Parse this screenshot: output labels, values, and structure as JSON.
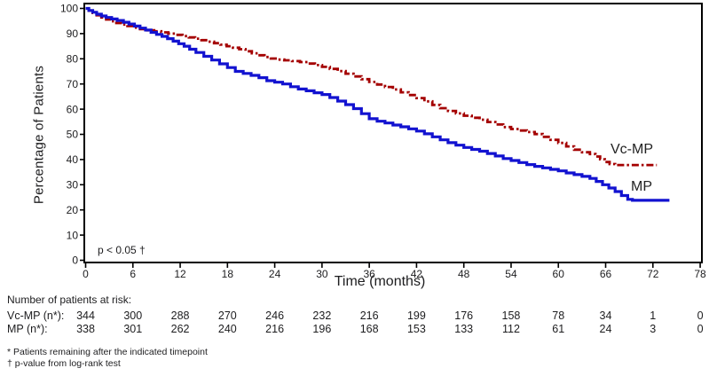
{
  "footnotes": [
    "* Patients remaining after the indicated timepoint",
    "† p-value from log-rank test"
  ],
  "chart_data": {
    "type": "line",
    "subtype": "kaplan-meier-step",
    "title": "",
    "xlabel": "Time (months)",
    "ylabel": "Percentage of Patients",
    "xlim": [
      0,
      78
    ],
    "ylim": [
      0,
      100
    ],
    "x_ticks": [
      0,
      6,
      12,
      18,
      24,
      30,
      36,
      42,
      48,
      54,
      60,
      66,
      72,
      78
    ],
    "y_ticks": [
      0,
      10,
      20,
      30,
      40,
      50,
      60,
      70,
      80,
      90,
      100
    ],
    "grid": false,
    "legend_position": "end-of-curve-labels",
    "annotation": "p < 0.05 †",
    "frame_color": "#000000",
    "series": [
      {
        "name": "Vc-MP",
        "color": "#A40000",
        "style": "dashed",
        "points": [
          [
            0,
            100
          ],
          [
            0.4,
            99.1
          ],
          [
            0.9,
            98.2
          ],
          [
            1.4,
            97.3
          ],
          [
            2,
            96.4
          ],
          [
            2.6,
            95.6
          ],
          [
            3.2,
            94.9
          ],
          [
            3.9,
            94.2
          ],
          [
            4.6,
            93.6
          ],
          [
            5.3,
            93
          ],
          [
            6.1,
            92.4
          ],
          [
            6.9,
            91.8
          ],
          [
            7.8,
            91.3
          ],
          [
            8.7,
            90.9
          ],
          [
            9.6,
            90.5
          ],
          [
            10.5,
            90
          ],
          [
            11.4,
            89.5
          ],
          [
            12.3,
            89
          ],
          [
            13.1,
            88.5
          ],
          [
            13.9,
            88
          ],
          [
            14.7,
            87.4
          ],
          [
            15.5,
            86.8
          ],
          [
            16.3,
            86.2
          ],
          [
            17.1,
            85.6
          ],
          [
            17.9,
            85
          ],
          [
            18.7,
            84.4
          ],
          [
            19.5,
            83.8
          ],
          [
            20.3,
            83
          ],
          [
            21.1,
            82.2
          ],
          [
            21.9,
            81.4
          ],
          [
            22.7,
            80.7
          ],
          [
            23.5,
            80.1
          ],
          [
            24.3,
            79.7
          ],
          [
            25.2,
            79.4
          ],
          [
            26.2,
            79.1
          ],
          [
            27.2,
            78.7
          ],
          [
            28.2,
            78.1
          ],
          [
            29.1,
            77.5
          ],
          [
            30,
            76.8
          ],
          [
            31,
            76
          ],
          [
            32,
            75.1
          ],
          [
            33,
            74.1
          ],
          [
            34,
            73
          ],
          [
            35,
            71.9
          ],
          [
            36,
            70.8
          ],
          [
            37,
            69.8
          ],
          [
            38,
            68.8
          ],
          [
            39,
            67.8
          ],
          [
            40,
            66.7
          ],
          [
            41,
            65.6
          ],
          [
            42,
            64.4
          ],
          [
            43,
            63.1
          ],
          [
            44,
            61.7
          ],
          [
            45,
            60.4
          ],
          [
            46,
            59.3
          ],
          [
            47,
            58.3
          ],
          [
            48,
            57.4
          ],
          [
            49,
            56.6
          ],
          [
            50,
            55.8
          ],
          [
            51,
            54.9
          ],
          [
            52,
            53.9
          ],
          [
            53,
            52.9
          ],
          [
            54,
            52.1
          ],
          [
            55,
            51.5
          ],
          [
            56,
            50.9
          ],
          [
            57,
            50.1
          ],
          [
            58,
            49
          ],
          [
            59,
            47.8
          ],
          [
            60,
            46.6
          ],
          [
            61,
            45.2
          ],
          [
            62,
            43.9
          ],
          [
            63,
            42.9
          ],
          [
            64,
            42.2
          ],
          [
            64.7,
            41.2
          ],
          [
            65.3,
            40.1
          ],
          [
            65.9,
            39
          ],
          [
            66.5,
            38.2
          ],
          [
            67.2,
            37.8
          ],
          [
            72.5,
            37.8
          ]
        ]
      },
      {
        "name": "MP",
        "color": "#1212D0",
        "style": "solid",
        "points": [
          [
            0,
            100
          ],
          [
            0.4,
            99.2
          ],
          [
            0.9,
            98.5
          ],
          [
            1.4,
            97.7
          ],
          [
            2,
            97
          ],
          [
            2.6,
            96.4
          ],
          [
            3.3,
            95.8
          ],
          [
            4,
            95.2
          ],
          [
            4.8,
            94.5
          ],
          [
            5.5,
            93.8
          ],
          [
            6.2,
            93
          ],
          [
            6.9,
            92.2
          ],
          [
            7.6,
            91.4
          ],
          [
            8.3,
            90.5
          ],
          [
            9,
            89.7
          ],
          [
            9.7,
            88.9
          ],
          [
            10.4,
            88
          ],
          [
            11.1,
            87
          ],
          [
            11.8,
            86
          ],
          [
            12.5,
            85
          ],
          [
            13.2,
            83.8
          ],
          [
            14,
            82.5
          ],
          [
            15,
            81
          ],
          [
            16,
            79.5
          ],
          [
            17,
            78
          ],
          [
            18,
            76.5
          ],
          [
            19,
            75
          ],
          [
            20,
            74.2
          ],
          [
            21,
            73.4
          ],
          [
            22,
            72.5
          ],
          [
            23,
            71.3
          ],
          [
            24,
            70.7
          ],
          [
            25,
            70
          ],
          [
            26,
            68.9
          ],
          [
            27,
            68
          ],
          [
            28,
            67.3
          ],
          [
            29,
            66.5
          ],
          [
            30,
            65.8
          ],
          [
            31,
            64.6
          ],
          [
            32,
            63.2
          ],
          [
            33,
            61.8
          ],
          [
            34,
            60.2
          ],
          [
            35,
            58.2
          ],
          [
            36,
            56.2
          ],
          [
            37,
            55.2
          ],
          [
            38,
            54.5
          ],
          [
            39,
            53.7
          ],
          [
            40,
            53
          ],
          [
            41,
            52.2
          ],
          [
            42,
            51.3
          ],
          [
            43,
            50.2
          ],
          [
            44,
            49
          ],
          [
            45,
            47.8
          ],
          [
            46,
            46.7
          ],
          [
            47,
            45.7
          ],
          [
            48,
            44.8
          ],
          [
            49,
            44
          ],
          [
            50,
            43.3
          ],
          [
            51,
            42.4
          ],
          [
            52,
            41.4
          ],
          [
            53,
            40.4
          ],
          [
            54,
            39.6
          ],
          [
            55,
            38.8
          ],
          [
            56,
            38
          ],
          [
            57,
            37.3
          ],
          [
            58,
            36.7
          ],
          [
            59,
            36.1
          ],
          [
            60,
            35.5
          ],
          [
            61,
            34.7
          ],
          [
            62,
            34
          ],
          [
            63,
            33.3
          ],
          [
            64,
            32.5
          ],
          [
            64.8,
            31.3
          ],
          [
            65.6,
            30
          ],
          [
            66.4,
            28.7
          ],
          [
            67.2,
            27.3
          ],
          [
            68,
            25.7
          ],
          [
            68.8,
            24.2
          ],
          [
            69.4,
            23.8
          ],
          [
            74.1,
            23.8
          ]
        ]
      }
    ],
    "at_risk": {
      "header": "Number of patients at risk:",
      "timepoints": [
        0,
        6,
        12,
        18,
        24,
        30,
        36,
        42,
        48,
        54,
        60,
        66,
        72,
        78
      ],
      "rows": [
        {
          "label": "Vc-MP (n*):",
          "values": [
            344,
            300,
            288,
            270,
            246,
            232,
            216,
            199,
            176,
            158,
            78,
            34,
            1,
            0
          ]
        },
        {
          "label": "MP (n*):",
          "values": [
            338,
            301,
            262,
            240,
            216,
            196,
            168,
            153,
            133,
            112,
            61,
            24,
            3,
            0
          ]
        }
      ]
    }
  }
}
